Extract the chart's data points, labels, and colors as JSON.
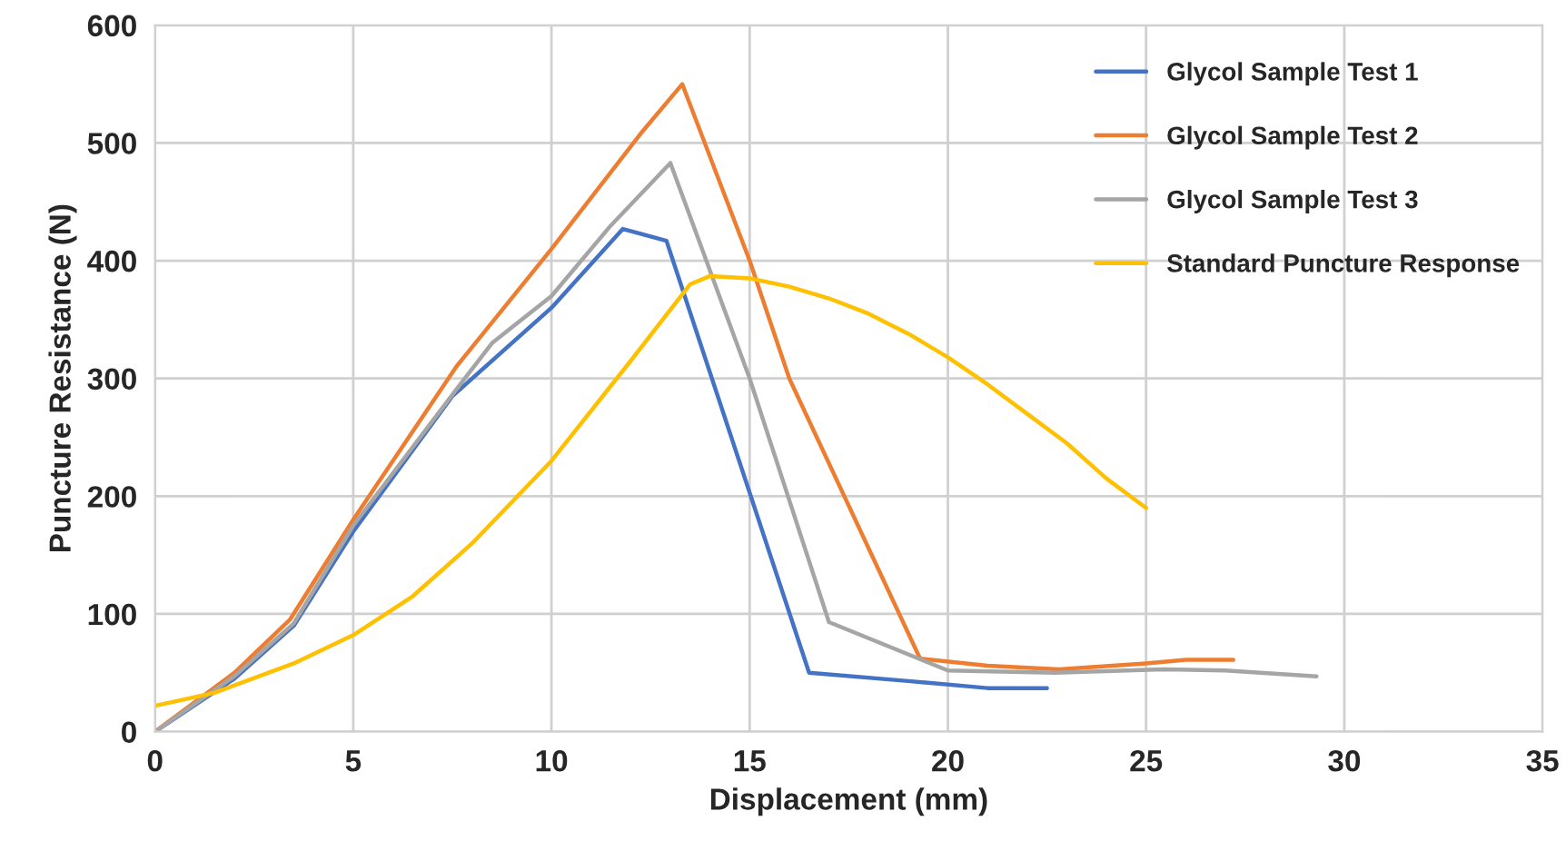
{
  "chart_data": {
    "type": "line",
    "xlabel": "Displacement (mm)",
    "ylabel": "Puncture Resistance (N)",
    "xlim": [
      0,
      35
    ],
    "xticks": [
      0,
      5,
      10,
      15,
      20,
      25,
      30,
      35
    ],
    "ylim": [
      0,
      600
    ],
    "yticks": [
      0,
      100,
      200,
      300,
      400,
      500,
      600
    ],
    "grid": true,
    "legend": "top right",
    "marker": "none",
    "line_style": "solid",
    "series": [
      {
        "name": "Glycol Sample Test 1",
        "color": "#4472c4",
        "x": [
          0,
          2,
          3.5,
          5,
          7.5,
          10,
          11.8,
          12.9,
          16.5,
          19,
          21,
          22.5
        ],
        "values": [
          0,
          45,
          90,
          170,
          285,
          360,
          427,
          417,
          50,
          43,
          37,
          37
        ]
      },
      {
        "name": "Glycol Sample Test 2",
        "color": "#ed7d31",
        "x": [
          0,
          2,
          3.4,
          5,
          7.6,
          10,
          12.3,
          13.3,
          15,
          16,
          19.3,
          21,
          22.8,
          25,
          26,
          27.2
        ],
        "values": [
          0,
          50,
          95,
          180,
          310,
          410,
          510,
          550,
          400,
          300,
          62,
          56,
          53,
          58,
          61,
          61
        ]
      },
      {
        "name": "Glycol Sample Test 3",
        "color": "#a5a5a5",
        "x": [
          0,
          2,
          3.5,
          5,
          7.7,
          8.5,
          10,
          11.5,
          13,
          15,
          17,
          20,
          22.7,
          25.5,
          27,
          29.3
        ],
        "values": [
          0,
          47,
          92,
          175,
          295,
          330,
          370,
          430,
          483,
          300,
          93,
          52,
          50,
          53,
          52,
          47
        ]
      },
      {
        "name": "Standard Puncture Response",
        "color": "#ffc000",
        "x": [
          0,
          1.5,
          3.5,
          5,
          6.5,
          8,
          10,
          12,
          13.5,
          14,
          15,
          16,
          17,
          18,
          19,
          20,
          21,
          22,
          23,
          24,
          25
        ],
        "values": [
          22,
          33,
          58,
          82,
          115,
          160,
          230,
          315,
          380,
          387,
          385,
          378,
          368,
          355,
          338,
          318,
          295,
          270,
          245,
          215,
          190
        ]
      }
    ]
  }
}
